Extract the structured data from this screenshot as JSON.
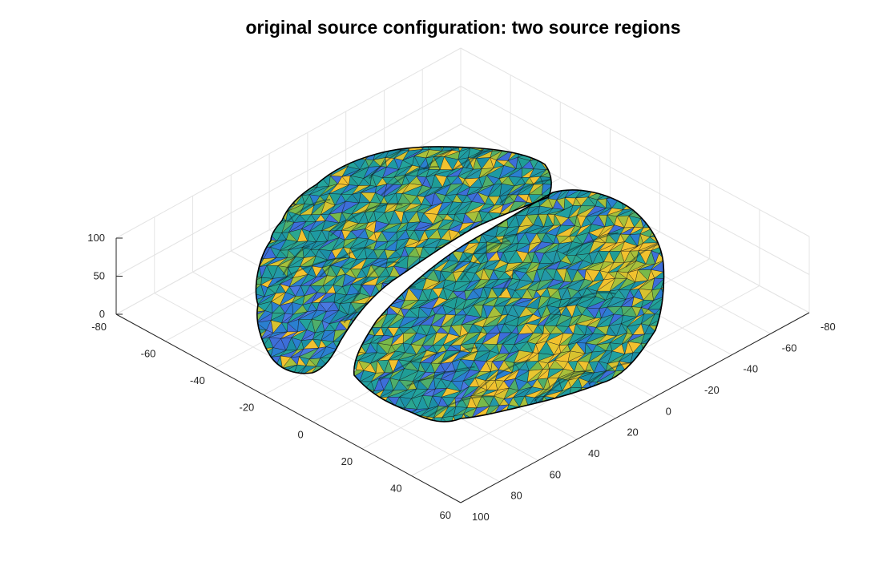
{
  "chart_data": {
    "type": "surface3d",
    "title": "original source configuration: two source regions",
    "xlabel": "",
    "ylabel": "",
    "zlabel": "",
    "x_axis": {
      "ticks": [
        "-80",
        "-60",
        "-40",
        "-20",
        "0",
        "20",
        "40",
        "60"
      ],
      "lim": [
        -80,
        60
      ]
    },
    "y_axis": {
      "ticks": [
        "100",
        "80",
        "60",
        "40",
        "20",
        "0",
        "-20",
        "-40",
        "-60",
        "-80"
      ],
      "lim": [
        -80,
        100
      ]
    },
    "z_axis": {
      "ticks": [
        "0",
        "50",
        "100"
      ],
      "lim": [
        0,
        100
      ]
    },
    "grid": true,
    "colormap": "parula",
    "colors": {
      "low": "#3d6ed9",
      "mid": "#22a3a0",
      "high": "#f2c12e",
      "edge": "#111111"
    },
    "surface": "cortical mesh with two hemispheres"
  }
}
